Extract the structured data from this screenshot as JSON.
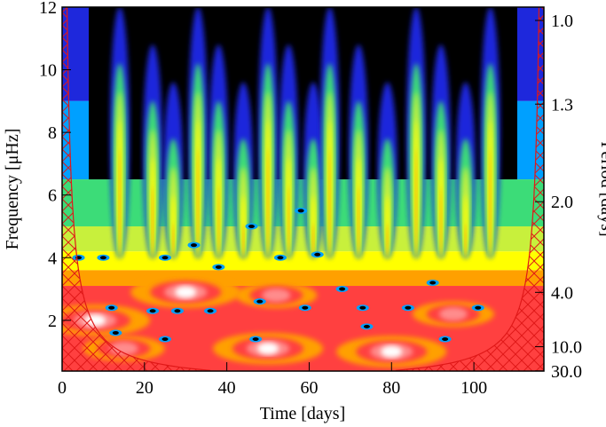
{
  "chart_data": {
    "type": "heatmap",
    "title": "",
    "xlabel": "Time [days]",
    "ylabel": "Frequency [μHz]",
    "y2label": "Period [days]",
    "xlim": [
      0,
      117
    ],
    "ylim": [
      0.38,
      12
    ],
    "xticks": [
      0,
      20,
      40,
      60,
      80,
      100
    ],
    "xtick_labels": [
      "0",
      "20",
      "40",
      "60",
      "80",
      "100"
    ],
    "yticks": [
      2,
      4,
      6,
      8,
      10,
      12
    ],
    "ytick_labels": [
      "2",
      "4",
      "6",
      "8",
      "10",
      "12"
    ],
    "period_ticks_days": [
      1.0,
      1.3,
      2.0,
      4.0,
      10.0,
      30.0
    ],
    "period_tick_labels": [
      "1.0",
      "1.3",
      "2.0",
      "4.0",
      "10.0",
      "30.0"
    ],
    "colormap": [
      "#000000",
      "#1e28dc",
      "#00a0ff",
      "#3cdc78",
      "#c8f03c",
      "#ffff00",
      "#ffa000",
      "#ff4040",
      "#ff8c8c",
      "#ffffff"
    ],
    "cone_of_influence_color": "#e01818",
    "hotspots": [
      {
        "time": 30,
        "freq": 2.9,
        "level": 9
      },
      {
        "time": 8,
        "freq": 2.0,
        "level": 9
      },
      {
        "time": 50,
        "freq": 1.1,
        "level": 9
      },
      {
        "time": 80,
        "freq": 1.0,
        "level": 9
      },
      {
        "time": 15,
        "freq": 1.1,
        "level": 8
      },
      {
        "time": 52,
        "freq": 2.8,
        "level": 8
      },
      {
        "time": 95,
        "freq": 2.2,
        "level": 8
      }
    ]
  }
}
